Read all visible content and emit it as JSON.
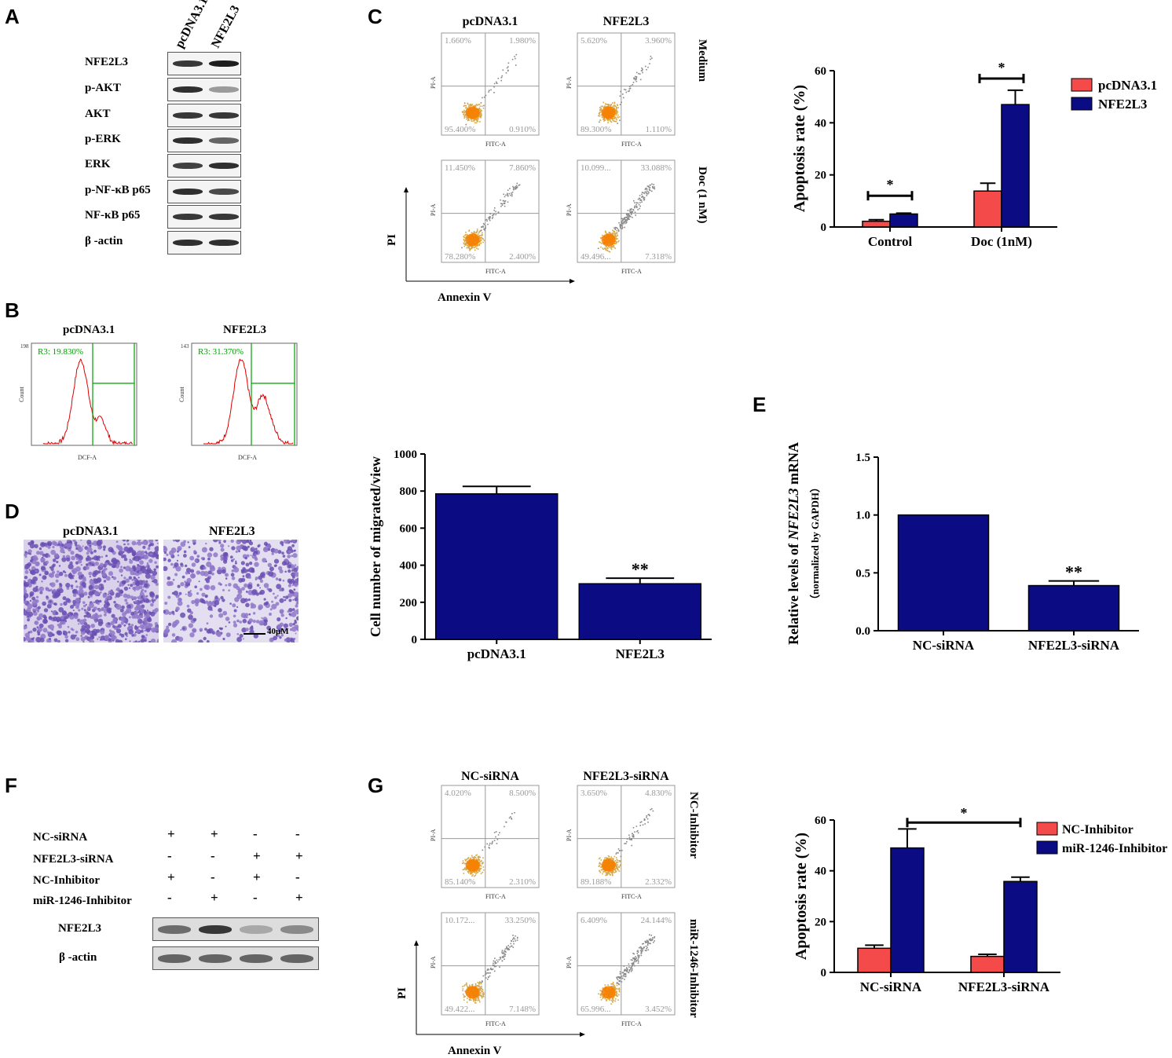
{
  "panels": {
    "A": "A",
    "B": "B",
    "C": "C",
    "D": "D",
    "E": "E",
    "F": "F",
    "G": "G"
  },
  "panelA": {
    "lane_labels": [
      "pcDNA3.1",
      "NFE2L3"
    ],
    "rows": [
      {
        "label": "NFE2L3",
        "lane1": 0.8,
        "lane2": 0.95
      },
      {
        "label": "p-AKT",
        "lane1": 0.85,
        "lane2": 0.25
      },
      {
        "label": "AKT",
        "lane1": 0.8,
        "lane2": 0.8
      },
      {
        "label": "p-ERK",
        "lane1": 0.85,
        "lane2": 0.55
      },
      {
        "label": "ERK",
        "lane1": 0.75,
        "lane2": 0.85
      },
      {
        "label": "p-NF-κB p65",
        "lane1": 0.85,
        "lane2": 0.7
      },
      {
        "label": "NF-κB p65",
        "lane1": 0.8,
        "lane2": 0.8
      },
      {
        "label": "β -actin",
        "lane1": 0.85,
        "lane2": 0.85
      }
    ]
  },
  "panelB": {
    "plots": [
      {
        "title": "pcDNA3.1",
        "gate": "R3: 19.830%",
        "ymax": "198",
        "xlabel": "DCF-A",
        "ylabel": "Count"
      },
      {
        "title": "NFE2L3",
        "gate": "R3: 31.370%",
        "ymax": "143",
        "xlabel": "DCF-A",
        "ylabel": "Count"
      }
    ]
  },
  "panelC": {
    "col_titles": [
      "pcDNA3.1",
      "NFE2L3"
    ],
    "row_labels": [
      "Medium",
      "Doc (1 nM)"
    ],
    "axis_x": "Annexin V",
    "axis_y": "PI",
    "plot_xlabel": "FITC-A",
    "plot_ylabel": "PI-A",
    "plots": [
      {
        "ul": "1.660%",
        "ur": "1.980%",
        "ll": "95.400%",
        "lr": "0.910%"
      },
      {
        "ul": "5.620%",
        "ur": "3.960%",
        "ll": "89.300%",
        "lr": "1.110%"
      },
      {
        "ul": "11.450%",
        "ur": "7.860%",
        "ll": "78.280%",
        "lr": "2.400%"
      },
      {
        "ul": "10.099...",
        "ur": "33.088%",
        "ll": "49.496...",
        "lr": "7.318%"
      }
    ]
  },
  "panelD": {
    "titles": [
      "pcDNA3.1",
      "NFE2L3"
    ],
    "scale_label": "40μM"
  },
  "panelG": {
    "col_titles": [
      "NC-siRNA",
      "NFE2L3-siRNA"
    ],
    "row_labels": [
      "NC-Inhibitor",
      "miR-1246-Inhibitor"
    ],
    "axis_x": "Annexin V",
    "axis_y": "PI",
    "plot_xlabel": "FITC-A",
    "plot_ylabel": "PI-A",
    "plots": [
      {
        "ul": "4.020%",
        "ur": "8.500%",
        "ll": "85.140%",
        "lr": "2.310%"
      },
      {
        "ul": "3.650%",
        "ur": "4.830%",
        "ll": "89.188%",
        "lr": "2.332%"
      },
      {
        "ul": "10.172...",
        "ur": "33.250%",
        "ll": "49.422...",
        "lr": "7.148%"
      },
      {
        "ul": "6.409%",
        "ur": "24.144%",
        "ll": "65.996...",
        "lr": "3.452%"
      }
    ]
  },
  "panelF": {
    "conditions": [
      {
        "label": "NC-siRNA",
        "marks": [
          "+",
          "+",
          "-",
          "-"
        ]
      },
      {
        "label": "NFE2L3-siRNA",
        "marks": [
          "-",
          "-",
          "+",
          "+"
        ]
      },
      {
        "label": "NC-Inhibitor",
        "marks": [
          "+",
          "-",
          "+",
          "-"
        ]
      },
      {
        "label": "miR-1246-Inhibitor",
        "marks": [
          "-",
          "+",
          "-",
          "+"
        ]
      }
    ],
    "blots": [
      {
        "label": "NFE2L3",
        "intensity": [
          0.55,
          0.9,
          0.15,
          0.35
        ]
      },
      {
        "label": "β -actin",
        "intensity": [
          0.6,
          0.6,
          0.6,
          0.6
        ]
      }
    ]
  },
  "colors": {
    "red": "#f44a4a",
    "navy": "#0b0b84"
  },
  "chart_data": [
    {
      "id": "panelC-bar",
      "type": "bar",
      "ylabel": "Apoptosis rate (%)",
      "categories": [
        "Control",
        "Doc (1nM)"
      ],
      "series": [
        {
          "name": "pcDNA3.1",
          "values": [
            2.2,
            13.8
          ],
          "errors": [
            0.6,
            3.0
          ]
        },
        {
          "name": "NFE2L3",
          "values": [
            5.0,
            47.0
          ],
          "errors": [
            0.3,
            5.5
          ]
        }
      ],
      "ylim": [
        0,
        60
      ],
      "yticks": [
        "0",
        "20",
        "40",
        "60"
      ],
      "significance": [
        "*",
        "*"
      ],
      "legend": "top-right"
    },
    {
      "id": "panelD-bar",
      "type": "bar",
      "ylabel": "Cell number of migrated/view",
      "categories": [
        "pcDNA3.1",
        "NFE2L3"
      ],
      "values": [
        785,
        300
      ],
      "errors": [
        40,
        30
      ],
      "ylim": [
        0,
        1000
      ],
      "yticks": [
        "0",
        "200",
        "400",
        "600",
        "800",
        "1000"
      ],
      "significance": [
        "",
        "**"
      ]
    },
    {
      "id": "panelE-bar",
      "type": "bar",
      "ylabel_line1_pre": "Relative levels of ",
      "ylabel_line1_italic": "NFE2L3",
      "ylabel_line1_post": " mRNA",
      "ylabel_line2": "（normalized by GAPDH）",
      "categories": [
        "NC-siRNA",
        "NFE2L3-siRNA"
      ],
      "values": [
        1.0,
        0.39
      ],
      "errors": [
        0.0,
        0.04
      ],
      "ylim": [
        0,
        1.5
      ],
      "yticks": [
        "0.0",
        "0.5",
        "1.0",
        "1.5"
      ],
      "significance": [
        "",
        "**"
      ]
    },
    {
      "id": "panelG-bar",
      "type": "bar",
      "ylabel": "Apoptosis rate (%)",
      "categories": [
        "NC-siRNA",
        "NFE2L3-siRNA"
      ],
      "series": [
        {
          "name": "NC-Inhibitor",
          "values": [
            9.5,
            6.3
          ],
          "errors": [
            1.2,
            0.8
          ]
        },
        {
          "name": "miR-1246-Inhibitor",
          "values": [
            49.0,
            35.8
          ],
          "errors": [
            7.5,
            1.7
          ]
        }
      ],
      "ylim": [
        0,
        60
      ],
      "yticks": [
        "0",
        "20",
        "40",
        "60"
      ],
      "significance": [
        "*"
      ],
      "legend": "top-right"
    }
  ]
}
